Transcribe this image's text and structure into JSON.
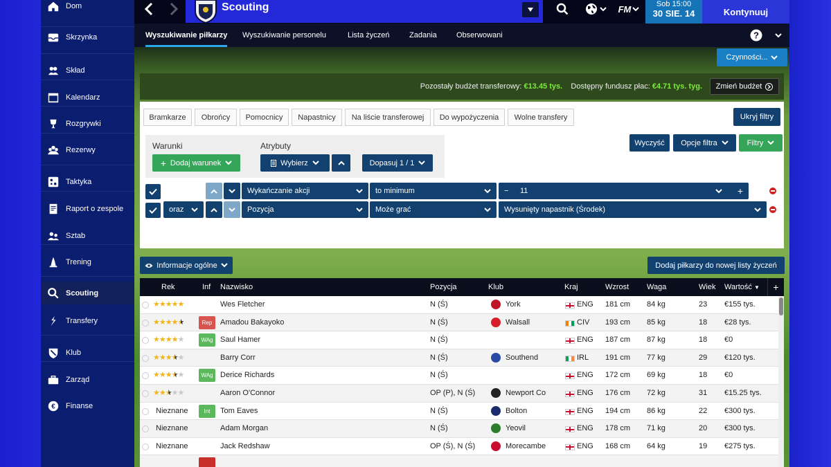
{
  "sidebar": {
    "items": [
      {
        "label": "Dom",
        "icon": "home-icon"
      },
      {
        "label": "Skrzynka",
        "icon": "inbox-icon"
      },
      {
        "label": "Skład",
        "icon": "squad-icon"
      },
      {
        "label": "Kalendarz",
        "icon": "calendar-icon"
      },
      {
        "label": "Rozgrywki",
        "icon": "trophy-icon"
      },
      {
        "label": "Rezerwy",
        "icon": "reserves-icon"
      },
      {
        "label": "Taktyka",
        "icon": "tactics-icon"
      },
      {
        "label": "Raport o zespole",
        "icon": "report-icon"
      },
      {
        "label": "Sztab",
        "icon": "staff-icon"
      },
      {
        "label": "Trening",
        "icon": "training-icon"
      },
      {
        "label": "Scouting",
        "icon": "search-icon"
      },
      {
        "label": "Transfery",
        "icon": "transfers-icon"
      },
      {
        "label": "Klub",
        "icon": "club-icon"
      },
      {
        "label": "Zarząd",
        "icon": "board-icon"
      },
      {
        "label": "Finanse",
        "icon": "finance-icon"
      }
    ]
  },
  "header": {
    "title": "Scouting",
    "logo": "FM",
    "date_day": "Sob 15:00",
    "date": "30 SIE. 14",
    "continue": "Kontynuuj"
  },
  "tabs": [
    "Wyszukiwanie piłkarzy",
    "Wyszukiwanie personelu",
    "Lista życzeń",
    "Zadania",
    "Obserwowani"
  ],
  "help": "?",
  "actions_label": "Czynności...",
  "budget": {
    "transfer_label": "Pozostały budżet transferowy:",
    "transfer_value": "€13.45 tys.",
    "wage_label": "Dostępny fundusz płac:",
    "wage_value": "€4.71 tys. tyg.",
    "change": "Zmień budżet"
  },
  "chips": [
    "Bramkarze",
    "Obrońcy",
    "Pomocnicy",
    "Napastnicy",
    "Na liście transferowej",
    "Do wypożyczenia",
    "Wolne transfery"
  ],
  "hide_filters": "Ukryj filtry",
  "conditions": {
    "label": "Warunki",
    "add": "Dodaj warunek",
    "attr_label": "Atrybuty",
    "select": "Wybierz",
    "fit": "Dopasuj 1 / 1"
  },
  "filter_buttons": {
    "clear": "Wyczyść",
    "options": "Opcje filtra",
    "filters": "Filtry"
  },
  "rules": [
    {
      "joiner": "",
      "field": "Wykańczanie akcji",
      "op": "to minimum",
      "value": "11",
      "minus": "−",
      "plus": "+"
    },
    {
      "joiner": "oraz",
      "field": "Pozycja",
      "op": "Może grać",
      "value": "Wysunięty napastnik (Środek)"
    }
  ],
  "info_btn": "Informacje ogólne",
  "add_list": "Dodaj piłkarzy do nowej listy życzeń",
  "table": {
    "headers": [
      "Rek",
      "Inf",
      "Nazwisko",
      "Pozycja",
      "Klub",
      "Kraj",
      "Wzrost",
      "Waga",
      "Wiek",
      "Wartość"
    ],
    "rows": [
      {
        "rek": 5,
        "rec_text": "",
        "inf": "",
        "name": "Wes Fletcher",
        "pos": "N (Ś)",
        "club": "York",
        "club_color": "#c0142c",
        "flag": "ENG",
        "country": "ENG",
        "height": "181 cm",
        "weight": "84 kg",
        "age": "23",
        "value": "€155 tys."
      },
      {
        "rek": 4.5,
        "rec_text": "",
        "inf": "Rep",
        "name": "Amadou Bakayoko",
        "pos": "N (Ś)",
        "club": "Walsall",
        "club_color": "#d81e2a",
        "flag": "CIV",
        "country": "CIV",
        "height": "193 cm",
        "weight": "85 kg",
        "age": "18",
        "value": "€28 tys."
      },
      {
        "rek": 4,
        "rec_text": "",
        "inf": "WAg",
        "name": "Saul Hamer",
        "pos": "N (Ś)",
        "club": "",
        "club_color": "",
        "flag": "ENG",
        "country": "ENG",
        "height": "187 cm",
        "weight": "87 kg",
        "age": "18",
        "value": "€0"
      },
      {
        "rek": 3.5,
        "rec_text": "",
        "inf": "",
        "name": "Barry Corr",
        "pos": "N (Ś)",
        "club": "Southend",
        "club_color": "#2a4aa8",
        "flag": "IRL",
        "country": "IRL",
        "height": "191 cm",
        "weight": "77 kg",
        "age": "29",
        "value": "€120 tys."
      },
      {
        "rek": 3.5,
        "rec_text": "",
        "inf": "WAg",
        "name": "Derice Richards",
        "pos": "N (Ś)",
        "club": "",
        "club_color": "",
        "flag": "ENG",
        "country": "ENG",
        "height": "172 cm",
        "weight": "69 kg",
        "age": "18",
        "value": "€0"
      },
      {
        "rek": 2.5,
        "rec_text": "",
        "inf": "",
        "name": "Aaron O'Connor",
        "pos": "OP (P), N (Ś)",
        "club": "Newport Co",
        "club_color": "#222222",
        "flag": "ENG",
        "country": "ENG",
        "height": "176 cm",
        "weight": "72 kg",
        "age": "31",
        "value": "€15.25 tys."
      },
      {
        "rek": 0,
        "rec_text": "Nieznane",
        "inf": "Int",
        "name": "Tom Eaves",
        "pos": "N (Ś)",
        "club": "Bolton",
        "club_color": "#1a2c6b",
        "flag": "ENG",
        "country": "ENG",
        "height": "194 cm",
        "weight": "86 kg",
        "age": "22",
        "value": "€300 tys."
      },
      {
        "rek": 0,
        "rec_text": "Nieznane",
        "inf": "",
        "name": "Adam Morgan",
        "pos": "N (Ś)",
        "club": "Yeovil",
        "club_color": "#2b7d2b",
        "flag": "ENG",
        "country": "ENG",
        "height": "178 cm",
        "weight": "71 kg",
        "age": "20",
        "value": "€300 tys."
      },
      {
        "rek": 0,
        "rec_text": "Nieznane",
        "inf": "",
        "name": "Jack Redshaw",
        "pos": "OP (Ś), N (Ś)",
        "club": "Morecambe",
        "club_color": "#c8102e",
        "flag": "ENG",
        "country": "ENG",
        "height": "168 cm",
        "weight": "64 kg",
        "age": "19",
        "value": "€275 tys."
      }
    ]
  }
}
